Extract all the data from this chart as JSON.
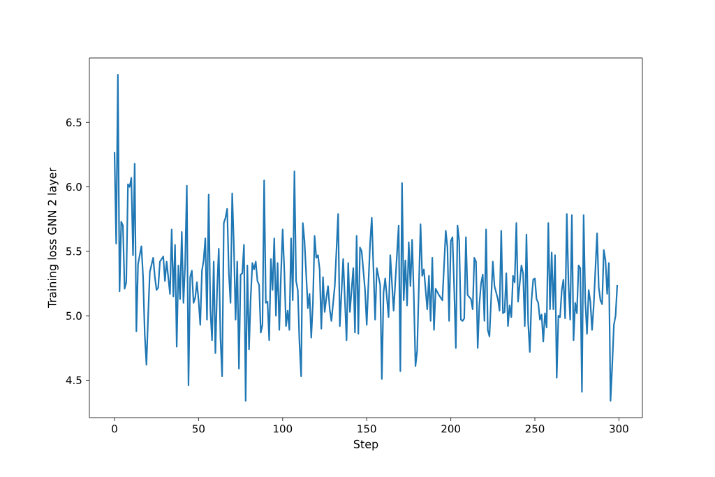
{
  "chart_data": {
    "type": "line",
    "xlabel": "Step",
    "ylabel": "Training loss GNN 2 layer",
    "xlim": [
      -14.95,
      313.95
    ],
    "ylim": [
      4.21,
      7.0
    ],
    "xticks": [
      0,
      50,
      100,
      150,
      200,
      250,
      300
    ],
    "yticks": [
      {
        "value": 4.5,
        "label": "4.5"
      },
      {
        "value": 5.0,
        "label": "5.0"
      },
      {
        "value": 5.5,
        "label": "5.5"
      },
      {
        "value": 6.0,
        "label": "6.0"
      },
      {
        "value": 6.5,
        "label": "6.5"
      }
    ],
    "grid": false,
    "marker": "none",
    "line_style": "solid",
    "series": [
      {
        "color": "#1f77b4",
        "x": [
          0,
          1,
          2,
          3,
          4,
          5,
          6,
          7,
          8,
          9,
          10,
          11,
          12,
          13,
          14,
          16,
          17,
          18,
          19,
          20,
          21,
          23,
          24,
          25,
          26,
          27,
          29,
          30,
          31,
          33,
          34,
          35,
          36,
          37,
          38,
          39,
          40,
          41,
          42,
          43,
          44,
          45,
          46,
          47,
          48,
          49,
          50,
          51,
          52,
          53,
          54,
          55,
          56,
          57,
          58,
          59,
          60,
          61,
          62,
          63,
          64,
          65,
          66,
          67,
          68,
          69,
          70,
          71,
          72,
          73,
          74,
          75,
          76,
          77,
          78,
          79,
          80,
          81,
          82,
          83,
          84,
          85,
          86,
          87,
          88,
          89,
          90,
          91,
          92,
          93,
          94,
          95,
          96,
          97,
          98,
          99,
          100,
          101,
          102,
          103,
          104,
          105,
          106,
          107,
          108,
          109,
          110,
          111,
          112,
          113,
          115,
          116,
          117,
          118,
          119,
          120,
          121,
          122,
          123,
          124,
          125,
          126,
          127,
          128,
          129,
          131,
          133,
          134,
          136,
          138,
          139,
          140,
          142,
          143,
          144,
          145,
          146,
          147,
          149,
          150,
          152,
          153,
          155,
          156,
          158,
          159,
          160,
          161,
          163,
          164,
          166,
          167,
          169,
          170,
          171,
          172,
          173,
          174,
          175,
          176,
          177,
          178,
          179,
          180,
          182,
          183,
          184,
          186,
          187,
          188,
          189,
          190,
          191,
          193,
          195,
          197,
          198,
          199,
          200,
          201,
          202,
          203,
          204,
          205,
          206,
          207,
          208,
          209,
          210,
          212,
          213,
          214,
          215,
          216,
          217,
          218,
          219,
          220,
          221,
          222,
          223,
          225,
          226,
          228,
          229,
          230,
          231,
          232,
          233,
          234,
          235,
          236,
          237,
          238,
          239,
          240,
          242,
          243,
          244,
          245,
          246,
          247,
          248,
          249,
          250,
          251,
          252,
          253,
          254,
          255,
          256,
          257,
          258,
          259,
          260,
          261,
          262,
          263,
          264,
          265,
          266,
          267,
          268,
          269,
          270,
          271,
          272,
          273,
          274,
          275,
          276,
          277,
          278,
          279,
          280,
          281,
          282,
          283,
          284,
          285,
          287,
          288,
          289,
          290,
          291,
          292,
          293,
          294,
          295,
          296,
          297,
          298,
          299
        ],
        "values": [
          6.27,
          5.56,
          6.87,
          5.19,
          5.73,
          5.7,
          5.21,
          5.26,
          6.02,
          6.0,
          6.07,
          5.47,
          6.18,
          4.88,
          5.4,
          5.54,
          5.3,
          4.85,
          4.62,
          5.0,
          5.34,
          5.45,
          5.3,
          5.2,
          5.22,
          5.42,
          5.46,
          5.27,
          5.42,
          5.17,
          5.67,
          5.15,
          5.55,
          4.76,
          5.39,
          5.13,
          5.65,
          5.1,
          5.4,
          6.01,
          4.46,
          5.3,
          5.35,
          5.1,
          5.14,
          5.26,
          5.12,
          4.93,
          5.35,
          5.43,
          5.6,
          4.97,
          5.94,
          5.05,
          4.81,
          5.42,
          4.71,
          5.2,
          5.52,
          4.83,
          4.53,
          5.72,
          5.76,
          5.83,
          5.33,
          5.1,
          5.95,
          5.54,
          4.97,
          5.42,
          4.59,
          5.32,
          5.33,
          5.55,
          4.34,
          5.39,
          4.74,
          5.14,
          5.41,
          5.36,
          5.42,
          5.27,
          5.24,
          4.87,
          4.93,
          6.05,
          5.1,
          5.11,
          4.81,
          5.44,
          5.2,
          5.6,
          5.0,
          5.41,
          4.89,
          5.32,
          5.67,
          5.35,
          4.92,
          5.04,
          4.89,
          5.6,
          5.12,
          6.12,
          5.27,
          5.2,
          4.79,
          4.53,
          5.72,
          5.58,
          5.06,
          5.17,
          4.83,
          5.1,
          5.62,
          5.45,
          5.47,
          5.36,
          4.9,
          5.3,
          5.03,
          5.14,
          5.23,
          5.05,
          4.96,
          5.23,
          5.79,
          4.92,
          5.44,
          4.81,
          5.41,
          5.03,
          5.37,
          4.87,
          5.62,
          4.86,
          5.53,
          5.5,
          5.2,
          4.93,
          5.56,
          5.76,
          4.97,
          5.37,
          5.24,
          4.51,
          5.18,
          5.29,
          4.99,
          5.47,
          5.04,
          5.26,
          5.7,
          4.57,
          6.03,
          5.12,
          5.43,
          5.08,
          5.57,
          5.23,
          5.59,
          5.16,
          4.61,
          4.73,
          5.71,
          5.31,
          5.36,
          5.05,
          5.31,
          4.96,
          5.45,
          4.89,
          5.21,
          5.16,
          5.12,
          5.66,
          5.53,
          4.96,
          5.58,
          5.61,
          5.22,
          4.75,
          5.7,
          5.58,
          4.97,
          4.96,
          4.98,
          5.61,
          5.16,
          5.13,
          5.05,
          5.45,
          5.42,
          4.75,
          5.09,
          5.25,
          5.32,
          4.96,
          5.67,
          4.89,
          4.84,
          5.42,
          5.23,
          5.13,
          5.04,
          5.66,
          5.02,
          5.03,
          5.33,
          4.92,
          5.08,
          4.99,
          5.31,
          5.26,
          5.72,
          5.11,
          5.39,
          5.33,
          4.92,
          5.63,
          4.95,
          4.72,
          5.12,
          5.28,
          5.29,
          5.13,
          5.1,
          4.97,
          5.01,
          4.8,
          5.02,
          4.91,
          5.72,
          5.05,
          5.49,
          5.05,
          5.47,
          4.52,
          5.0,
          4.99,
          5.2,
          5.28,
          4.98,
          5.79,
          5.25,
          4.97,
          5.78,
          4.81,
          5.1,
          5.02,
          5.39,
          5.37,
          4.41,
          5.78,
          5.11,
          4.86,
          5.2,
          5.11,
          4.89,
          5.08,
          5.64,
          5.22,
          5.12,
          5.09,
          5.51,
          5.43,
          5.17,
          5.41,
          4.34,
          4.61,
          4.93,
          5.0,
          5.24
        ]
      }
    ]
  }
}
